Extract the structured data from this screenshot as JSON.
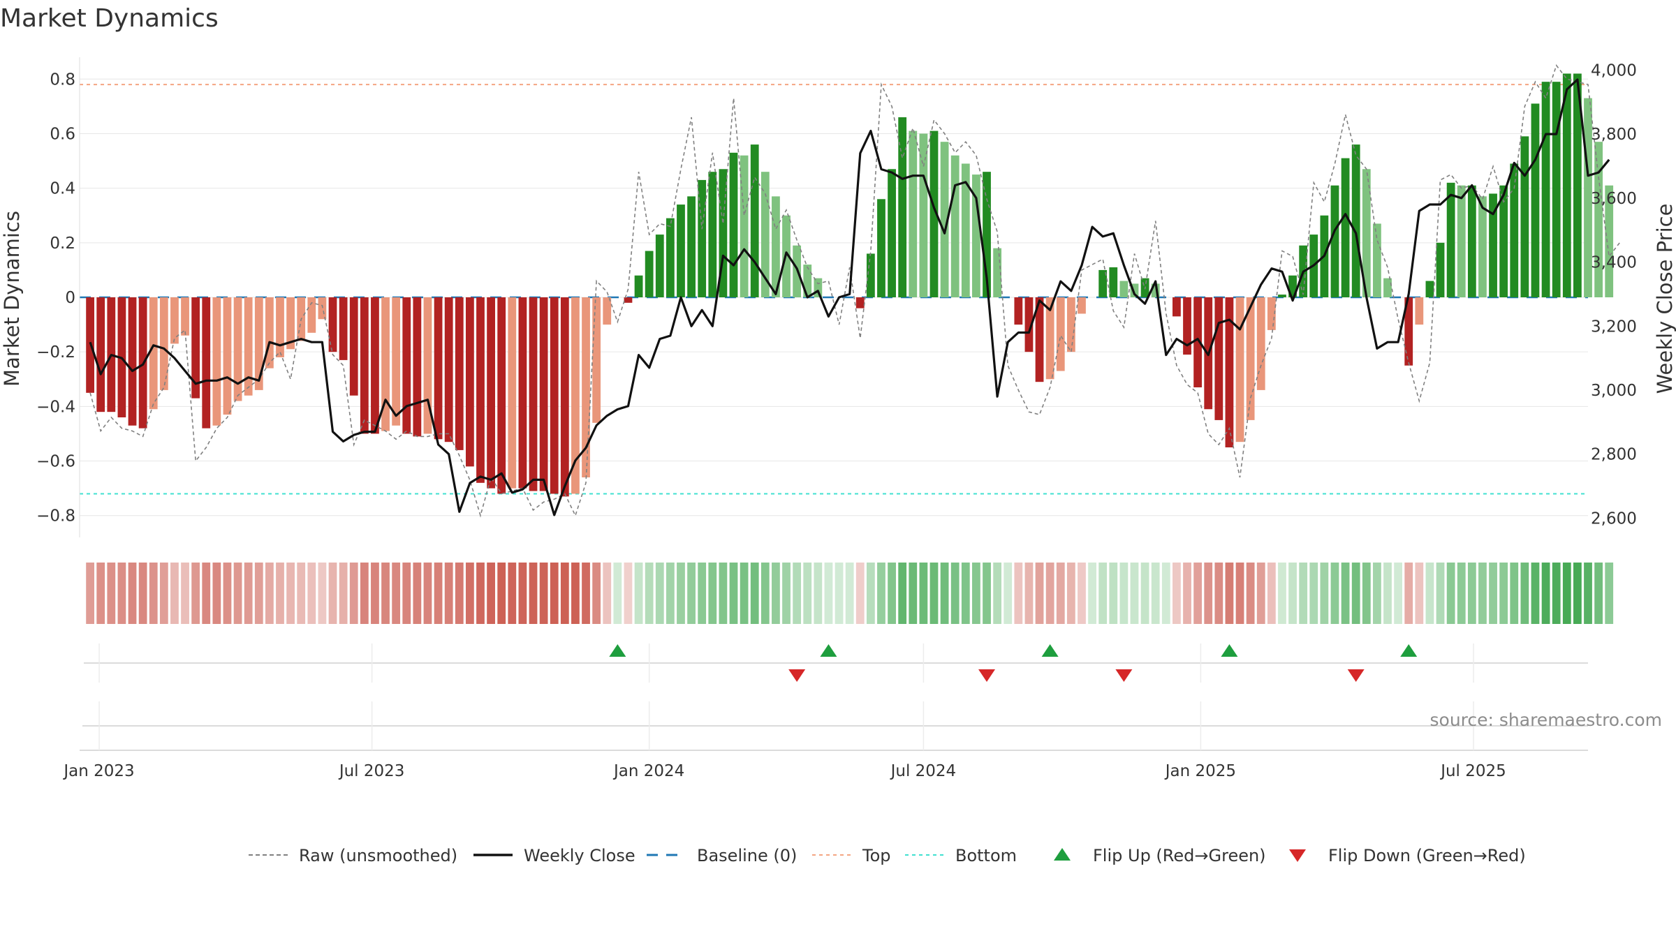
{
  "chart_data": {
    "type": "bar",
    "title": "Market Dynamics",
    "ylabel": "Market Dynamics",
    "y2label": "Weekly Close Price",
    "ylim": [
      -0.88,
      0.88
    ],
    "y2lim": [
      2540,
      4040
    ],
    "xlim": [
      "2022-12-19",
      "2025-09-15"
    ],
    "yticks": [
      "0.8",
      "0.6",
      "0.4",
      "0.2",
      "0",
      "−0.2",
      "−0.4",
      "−0.6",
      "−0.8"
    ],
    "yticks_values": [
      0.8,
      0.6,
      0.4,
      0.2,
      0,
      -0.2,
      -0.4,
      -0.6,
      -0.8
    ],
    "y2ticks": [
      "4,000",
      "3,800",
      "3,600",
      "3,400",
      "3,200",
      "3,000",
      "2,800",
      "2,600"
    ],
    "y2ticks_values": [
      4000,
      3800,
      3600,
      3400,
      3200,
      3000,
      2800,
      2600
    ],
    "xticks": [
      "Jan 2023",
      "Jul 2023",
      "Jan 2024",
      "Jul 2024",
      "Jan 2025",
      "Jul 2025"
    ],
    "xticks_dates": [
      "2023-01-01",
      "2023-07-01",
      "2024-01-01",
      "2024-07-01",
      "2025-01-01",
      "2025-07-01"
    ],
    "start_date": "2022-12-26",
    "interval_days": 7,
    "dynamics": [
      -0.35,
      -0.42,
      -0.42,
      -0.44,
      -0.47,
      -0.48,
      -0.41,
      -0.34,
      -0.17,
      -0.14,
      -0.37,
      -0.48,
      -0.47,
      -0.43,
      -0.38,
      -0.36,
      -0.34,
      -0.26,
      -0.22,
      -0.19,
      -0.16,
      -0.13,
      -0.08,
      -0.2,
      -0.23,
      -0.36,
      -0.5,
      -0.5,
      -0.49,
      -0.47,
      -0.5,
      -0.51,
      -0.5,
      -0.52,
      -0.53,
      -0.56,
      -0.62,
      -0.68,
      -0.7,
      -0.72,
      -0.7,
      -0.7,
      -0.71,
      -0.71,
      -0.72,
      -0.73,
      -0.72,
      -0.66,
      -0.46,
      -0.1,
      0.0,
      -0.02,
      0.08,
      0.17,
      0.23,
      0.29,
      0.34,
      0.37,
      0.43,
      0.46,
      0.47,
      0.53,
      0.52,
      0.56,
      0.46,
      0.37,
      0.3,
      0.19,
      0.12,
      0.07,
      0.0,
      0.0,
      0.0,
      -0.04,
      0.16,
      0.36,
      0.47,
      0.66,
      0.61,
      0.6,
      0.61,
      0.57,
      0.52,
      0.49,
      0.45,
      0.46,
      0.18,
      0.0,
      -0.1,
      -0.2,
      -0.31,
      -0.3,
      -0.27,
      -0.2,
      -0.06,
      0.0,
      0.1,
      0.11,
      0.06,
      0.05,
      0.07,
      0.05,
      0.0,
      -0.07,
      -0.21,
      -0.33,
      -0.41,
      -0.45,
      -0.55,
      -0.53,
      -0.45,
      -0.34,
      -0.12,
      0.01,
      0.08,
      0.19,
      0.23,
      0.3,
      0.41,
      0.51,
      0.56,
      0.47,
      0.27,
      0.07,
      0.0,
      -0.25,
      -0.1,
      0.06,
      0.2,
      0.42,
      0.41,
      0.41,
      0.37,
      0.38,
      0.41,
      0.49,
      0.59,
      0.71,
      0.79,
      0.79,
      0.82,
      0.82,
      0.73,
      0.57,
      0.41
    ],
    "raw": [
      -0.35,
      -0.49,
      -0.44,
      -0.48,
      -0.49,
      -0.51,
      -0.39,
      -0.33,
      -0.15,
      -0.12,
      -0.6,
      -0.55,
      -0.48,
      -0.44,
      -0.36,
      -0.33,
      -0.3,
      -0.24,
      -0.2,
      -0.3,
      -0.08,
      -0.02,
      -0.03,
      -0.21,
      -0.25,
      -0.54,
      -0.45,
      -0.47,
      -0.49,
      -0.52,
      -0.49,
      -0.51,
      -0.51,
      -0.5,
      -0.5,
      -0.58,
      -0.67,
      -0.8,
      -0.66,
      -0.72,
      -0.71,
      -0.7,
      -0.78,
      -0.75,
      -0.74,
      -0.72,
      -0.8,
      -0.68,
      0.06,
      0.02,
      -0.09,
      0.03,
      0.46,
      0.23,
      0.27,
      0.26,
      0.47,
      0.66,
      0.25,
      0.53,
      0.27,
      0.73,
      0.3,
      0.44,
      0.38,
      0.25,
      0.32,
      0.21,
      0.11,
      0.05,
      0.06,
      -0.1,
      0.11,
      -0.15,
      0.17,
      0.78,
      0.7,
      0.51,
      0.62,
      0.48,
      0.65,
      0.6,
      0.53,
      0.57,
      0.52,
      0.36,
      0.24,
      -0.25,
      -0.34,
      -0.42,
      -0.43,
      -0.33,
      -0.14,
      -0.2,
      0.1,
      0.12,
      0.14,
      -0.05,
      -0.11,
      0.16,
      0.03,
      0.28,
      -0.06,
      -0.25,
      -0.32,
      -0.35,
      -0.5,
      -0.54,
      -0.48,
      -0.66,
      -0.37,
      -0.25,
      -0.15,
      0.17,
      0.15,
      0.01,
      0.42,
      0.35,
      0.49,
      0.67,
      0.52,
      0.47,
      0.21,
      0.11,
      -0.08,
      -0.24,
      -0.38,
      -0.24,
      0.43,
      0.45,
      0.4,
      0.41,
      0.36,
      0.48,
      0.35,
      0.4,
      0.7,
      0.79,
      0.73,
      0.85,
      0.8,
      0.79,
      0.78,
      0.44,
      0.15,
      0.2
    ],
    "close": [
      3150,
      3050,
      3110,
      3100,
      3060,
      3080,
      3140,
      3130,
      3100,
      3060,
      3020,
      3030,
      3030,
      3040,
      3020,
      3040,
      3030,
      3150,
      3140,
      3150,
      3160,
      3150,
      3150,
      2870,
      2840,
      2860,
      2870,
      2870,
      2970,
      2920,
      2950,
      2960,
      2970,
      2830,
      2800,
      2620,
      2710,
      2730,
      2720,
      2740,
      2680,
      2690,
      2720,
      2720,
      2610,
      2700,
      2780,
      2820,
      2890,
      2920,
      2940,
      2950,
      3110,
      3070,
      3160,
      3170,
      3290,
      3200,
      3250,
      3200,
      3420,
      3390,
      3440,
      3400,
      3350,
      3300,
      3430,
      3380,
      3290,
      3310,
      3230,
      3290,
      3300,
      3740,
      3810,
      3690,
      3680,
      3660,
      3670,
      3670,
      3570,
      3490,
      3640,
      3650,
      3600,
      3350,
      2980,
      3150,
      3180,
      3180,
      3280,
      3250,
      3340,
      3310,
      3390,
      3510,
      3480,
      3490,
      3390,
      3300,
      3270,
      3340,
      3110,
      3160,
      3140,
      3160,
      3110,
      3210,
      3220,
      3190,
      3260,
      3330,
      3380,
      3370,
      3280,
      3370,
      3390,
      3420,
      3500,
      3550,
      3490,
      3290,
      3130,
      3150,
      3150,
      3300,
      3560,
      3580,
      3580,
      3610,
      3600,
      3640,
      3570,
      3550,
      3610,
      3710,
      3670,
      3720,
      3800,
      3800,
      3940,
      3970,
      3670,
      3680,
      3720
    ],
    "flip_up_dates": [
      "2023-12-11",
      "2024-04-29",
      "2024-09-23",
      "2025-01-20",
      "2025-05-19"
    ],
    "flip_down_dates": [
      "2024-04-08",
      "2024-08-12",
      "2024-11-11",
      "2025-04-14"
    ],
    "top_line": 0.78,
    "bottom_line": -0.72,
    "grid": true,
    "legend_placement": "bottom-center",
    "colors": {
      "neg_strong": "#b22222",
      "neg_light": "#e9967a",
      "pos_strong": "#228b22",
      "pos_light": "#7fc27f",
      "raw_line": "#808080",
      "close_line": "#111111",
      "baseline": "#1f77b4",
      "top": "#f4a582",
      "bottom": "#40e0d0",
      "flip_up": "#1e9e3e",
      "flip_down": "#d62728"
    }
  },
  "legend": [
    {
      "label": "Raw (unsmoothed)",
      "symbol": "dash-gray"
    },
    {
      "label": "Weekly Close",
      "symbol": "solid-black"
    },
    {
      "label": "Baseline (0)",
      "symbol": "dash-blue"
    },
    {
      "label": "Top",
      "symbol": "dot-orange"
    },
    {
      "label": "Bottom",
      "symbol": "dot-teal"
    },
    {
      "label": "Flip Up (Red→Green)",
      "symbol": "triangle-up-green"
    },
    {
      "label": "Flip Down (Green→Red)",
      "symbol": "triangle-down-red"
    }
  ],
  "source": "source: sharemaestro.com"
}
